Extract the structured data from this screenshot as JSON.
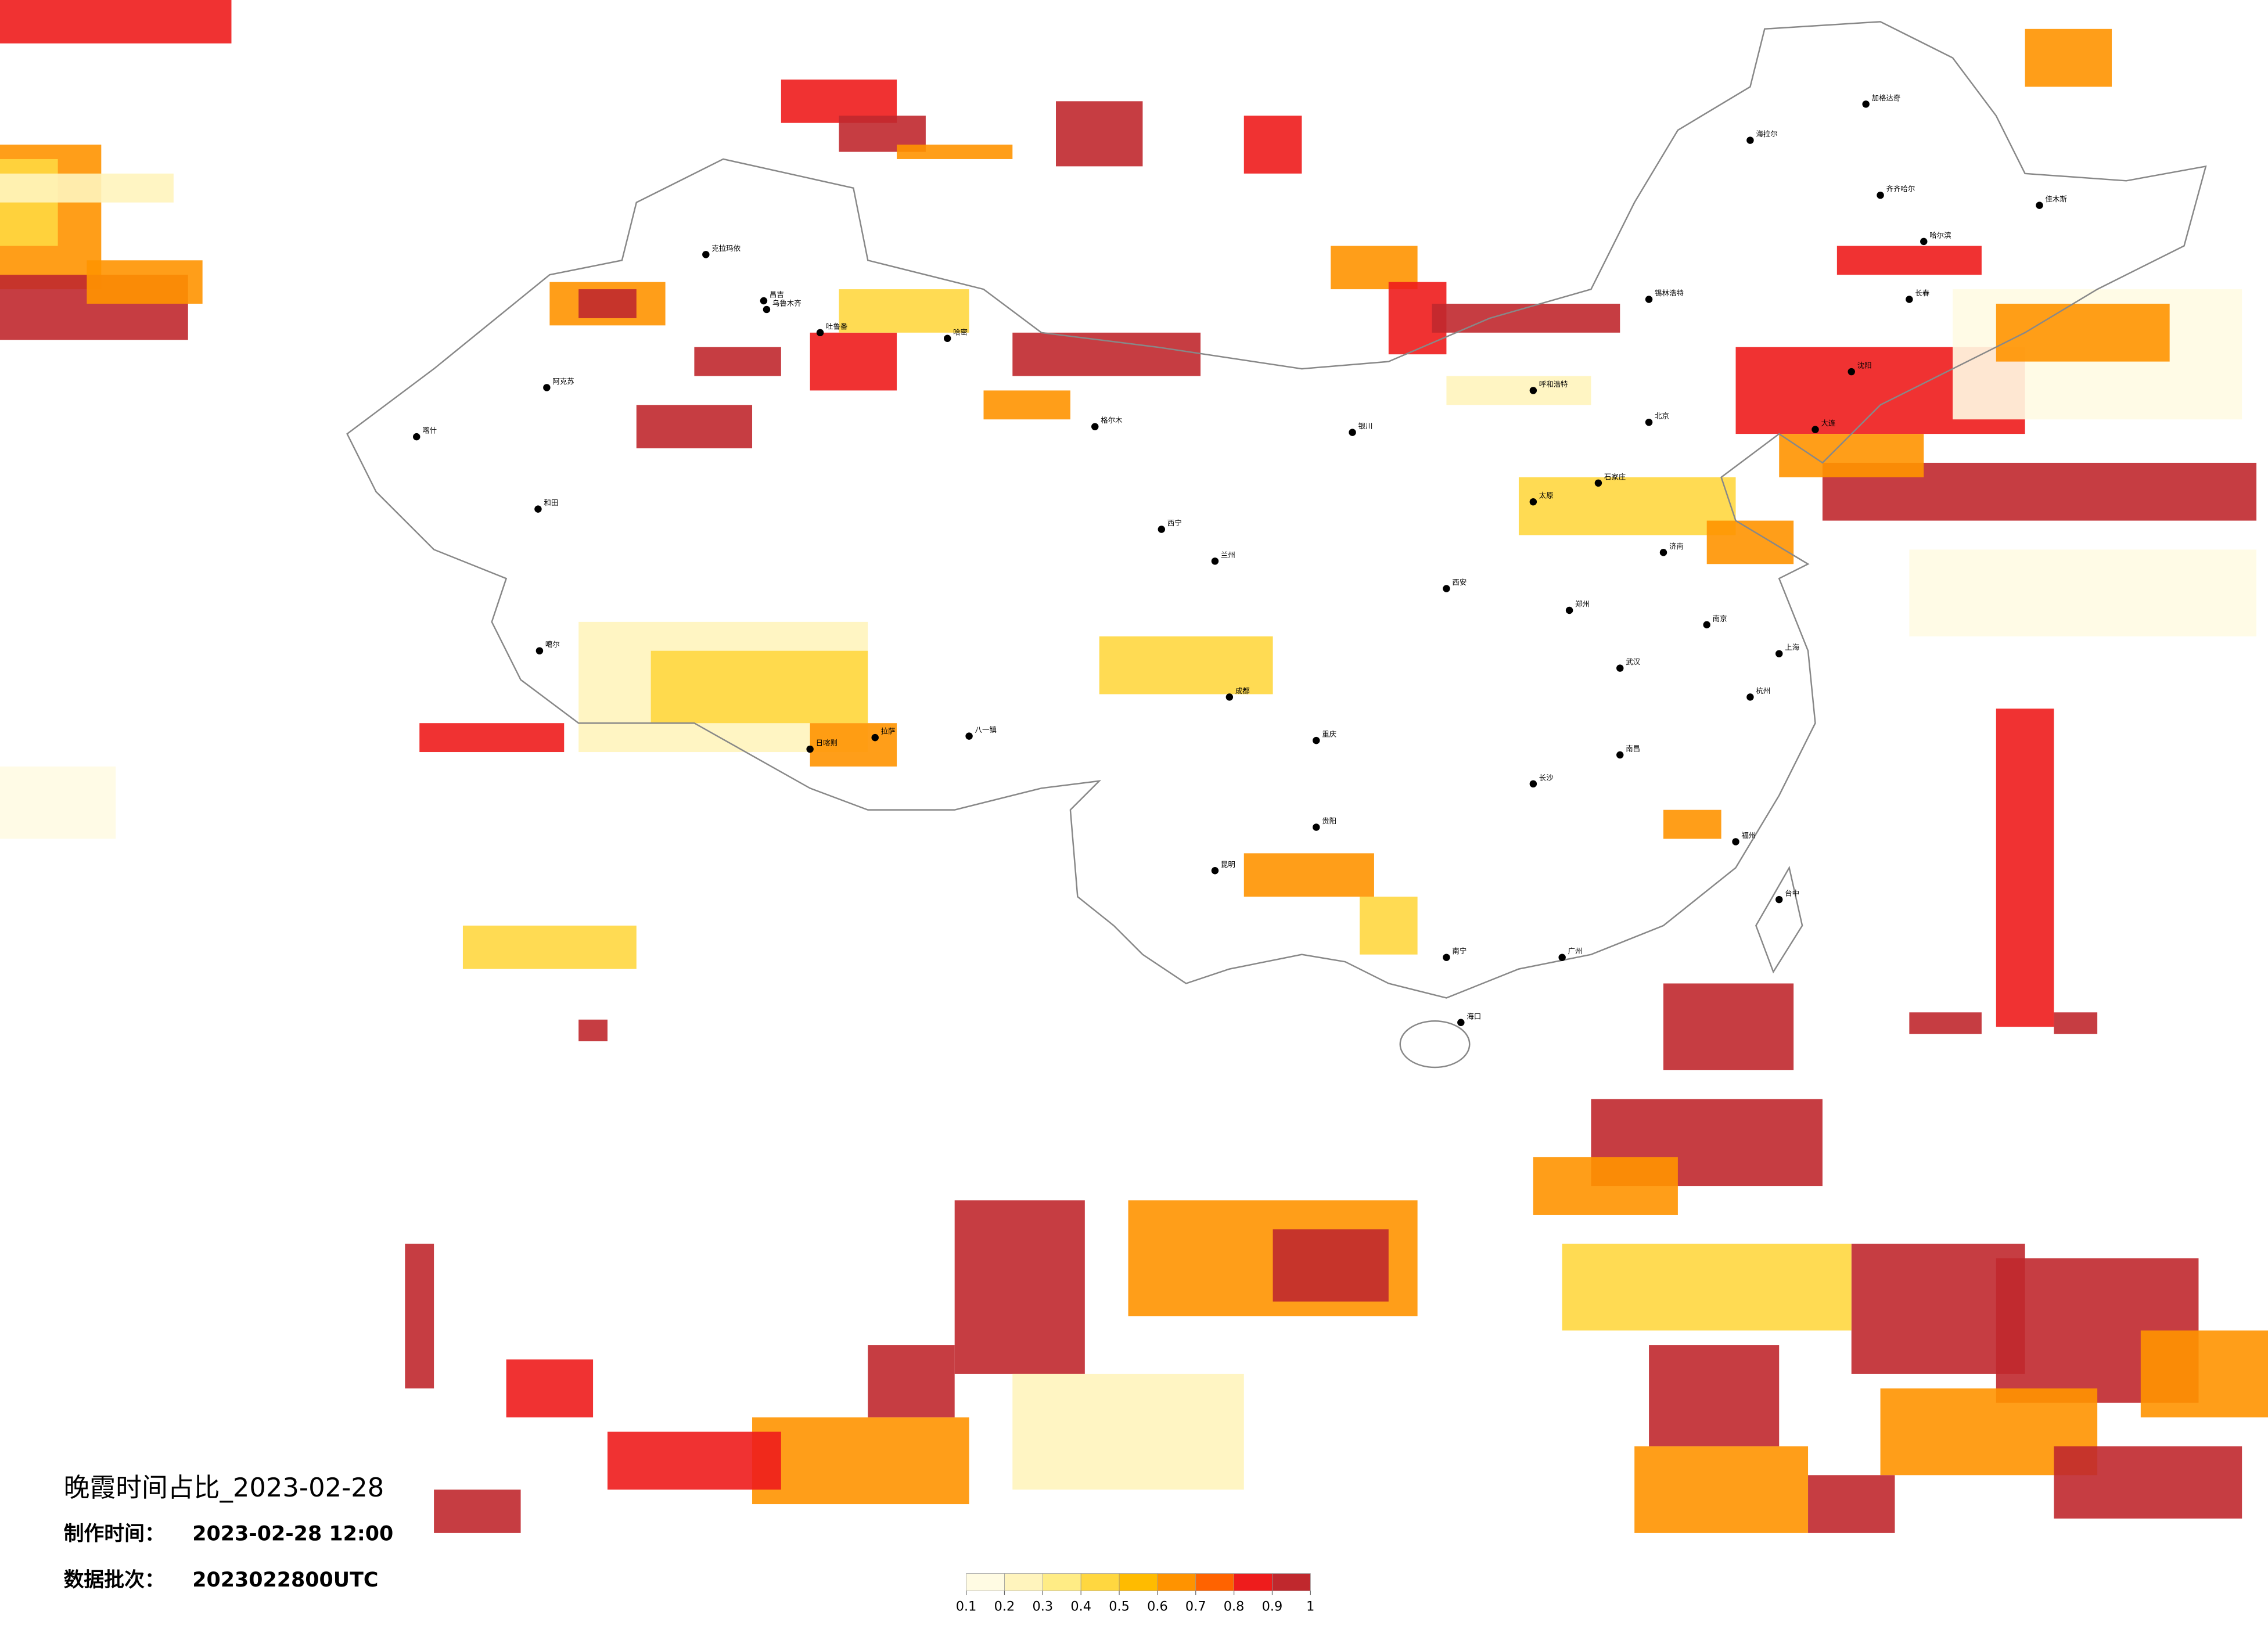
{
  "header": {
    "title": "晚霞时间占比_2023-02-28",
    "made_label": "制作时间：",
    "made_time": "2023-02-28 12:00",
    "batch_label": "数据批次：",
    "batch": "2023022800UTC"
  },
  "legend": {
    "colors": [
      "#fffbe3",
      "#fff4bd",
      "#ffec85",
      "#ffd740",
      "#ffbb00",
      "#ff9300",
      "#ff6300",
      "#ee1c1c",
      "#c0282d"
    ],
    "ticks": [
      0.1,
      0.2,
      0.3,
      0.4,
      0.5,
      0.6,
      0.7,
      0.8,
      0.9,
      1
    ]
  },
  "map": {
    "cities": [
      "克拉玛依",
      "昌吉",
      "乌鲁木齐",
      "吐鲁番",
      "哈密",
      "阿克苏",
      "喀什",
      "和田",
      "噶尔",
      "日喀则",
      "拉萨",
      "八一镇",
      "格尔木",
      "西宁",
      "兰州",
      "银川",
      "呼和浩特",
      "太原",
      "石家庄",
      "北京",
      "郑州",
      "西安",
      "成都",
      "重庆",
      "贵阳",
      "昆明",
      "南宁",
      "广州",
      "长沙",
      "武汉",
      "南京",
      "上海",
      "杭州",
      "福州",
      "南昌",
      "海口",
      "台中",
      "哈尔滨",
      "长春",
      "沈阳",
      "大连",
      "济南",
      "海拉尔",
      "齐齐哈尔",
      "加格达奇",
      "佳木斯",
      "锡林浩特"
    ]
  }
}
